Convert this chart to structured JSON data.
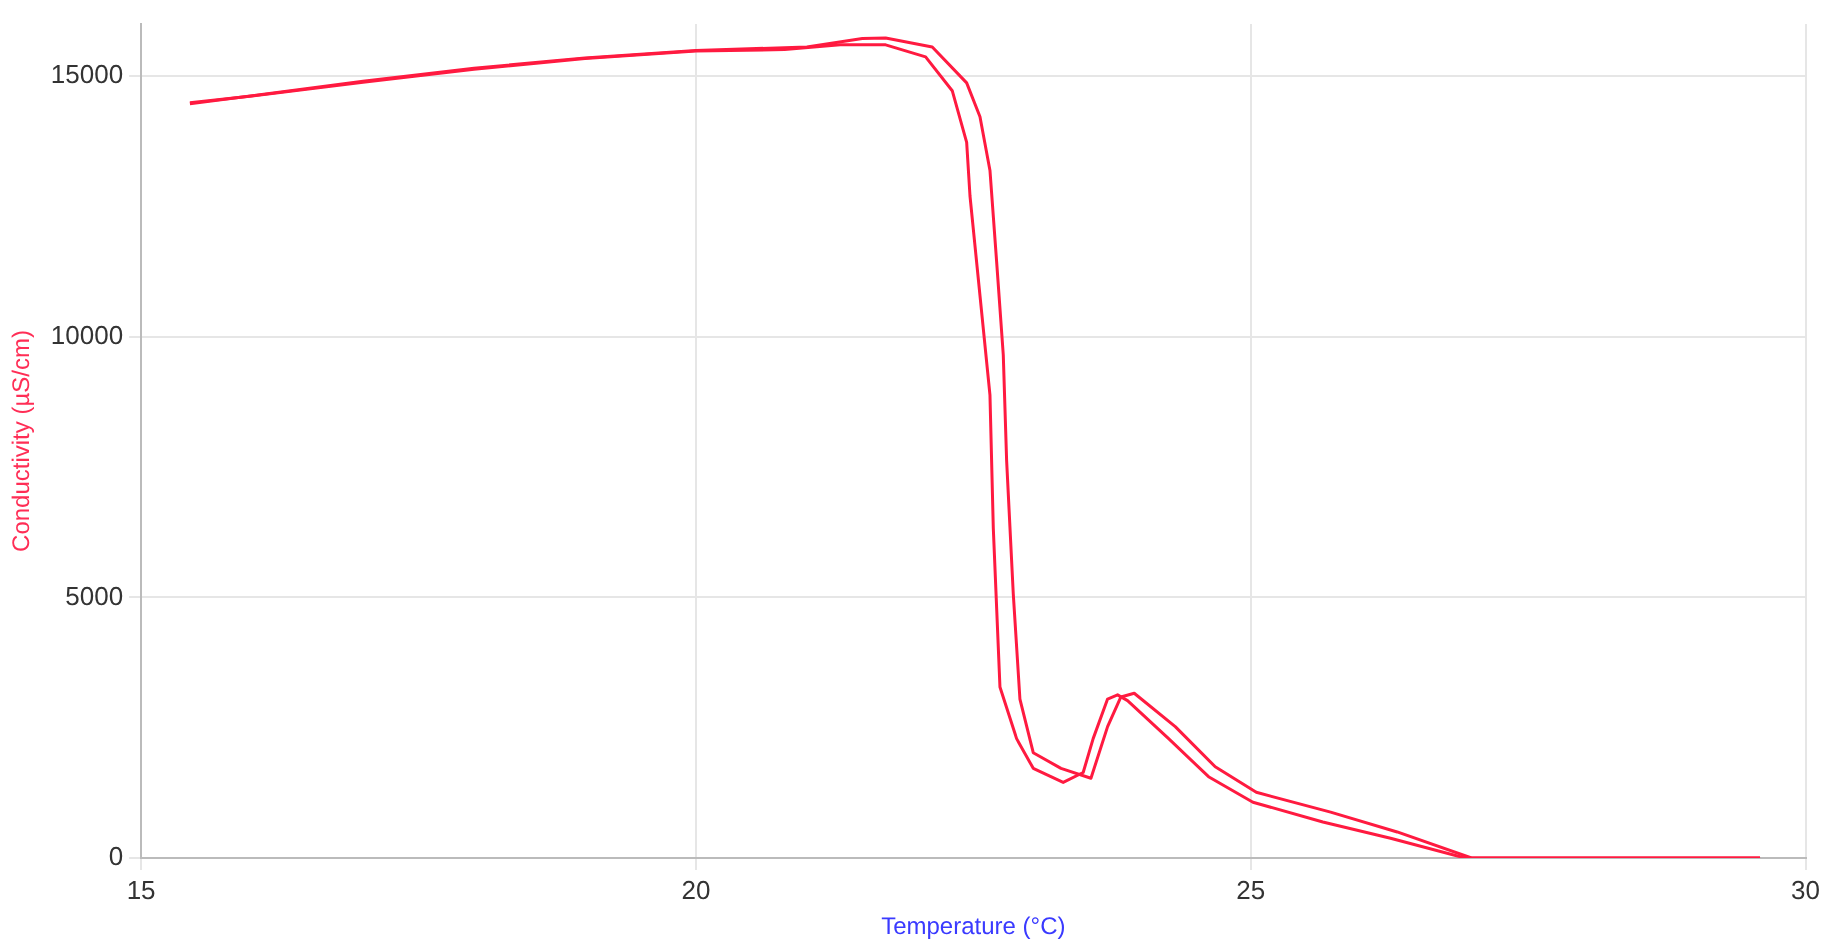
{
  "chart_data": {
    "type": "line",
    "xlabel": "Temperature (°C)",
    "ylabel": "Conductivity (µS/cm)",
    "xlim": [
      15,
      30
    ],
    "xticks": [
      15,
      20,
      25,
      30
    ],
    "ylim": [
      0,
      16000
    ],
    "yticks": [
      0,
      5000,
      10000,
      15000
    ],
    "grid": true,
    "legend": false,
    "marker": "none",
    "line_style": "solid",
    "series": [
      {
        "color": "#ff1a40",
        "x": [
          15.44,
          16,
          17,
          18,
          19,
          20,
          20.8,
          21.3,
          21.71,
          22.07,
          22.31,
          22.44,
          22.47,
          22.56,
          22.65,
          22.68,
          22.74,
          22.89,
          23.04,
          23.31,
          23.49,
          23.58,
          23.71,
          23.8,
          23.89,
          24.26,
          24.62,
          25.02,
          25.65,
          26.26,
          26.93,
          29.59
        ],
        "values": [
          14490,
          14620,
          14880,
          15130,
          15340,
          15480,
          15510,
          15600,
          15600,
          15370,
          14720,
          13730,
          12700,
          10790,
          8880,
          6330,
          3280,
          2290,
          1720,
          1450,
          1640,
          2290,
          3050,
          3130,
          3020,
          2290,
          1560,
          1070,
          690,
          380,
          0,
          0
        ]
      },
      {
        "color": "#ff1a40",
        "x": [
          15.44,
          17,
          18,
          19,
          20,
          21,
          21.5,
          21.71,
          22.13,
          22.44,
          22.56,
          22.65,
          22.71,
          22.77,
          22.8,
          22.86,
          22.92,
          23.04,
          23.29,
          23.56,
          23.71,
          23.83,
          23.95,
          24.32,
          24.68,
          25.05,
          25.72,
          26.32,
          26.99,
          29.59
        ],
        "values": [
          14470,
          14900,
          15150,
          15350,
          15490,
          15560,
          15720,
          15730,
          15560,
          14870,
          14220,
          13190,
          11440,
          9650,
          7630,
          5070,
          3050,
          2020,
          1720,
          1530,
          2520,
          3090,
          3160,
          2520,
          1750,
          1260,
          880,
          500,
          0,
          0
        ]
      }
    ]
  }
}
